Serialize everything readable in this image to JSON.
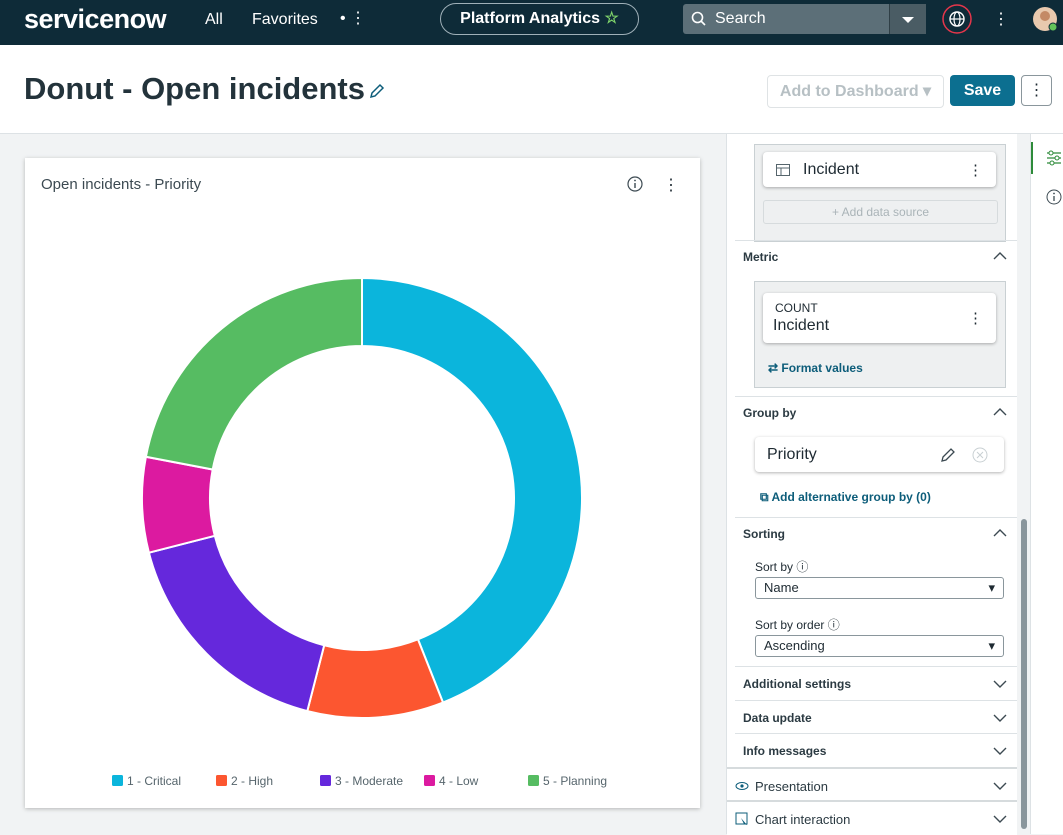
{
  "navbar": {
    "logo": "servicenow",
    "links": [
      "All",
      "Favorites"
    ],
    "app": "Platform Analytics",
    "search": "Search"
  },
  "header": {
    "title": "Donut - Open incidents",
    "add_button": "Add to Dashboard",
    "save_button": "Save"
  },
  "chart_data": {
    "type": "pie",
    "donut": true,
    "title": "Open incidents - Priority",
    "categories": [
      "1 - Critical",
      "2 - High",
      "3 - Moderate",
      "4 - Low",
      "5 - Planning"
    ],
    "values": [
      44,
      10,
      17,
      7,
      22
    ],
    "colors": [
      "#0bb5dc",
      "#fc5630",
      "#6528dc",
      "#dc1aa0",
      "#56bc62"
    ],
    "legend": "bottom"
  },
  "panel": {
    "data_source": "Incident",
    "add_data_source": "Add data source",
    "metric": {
      "title": "Metric",
      "aggregate": "COUNT",
      "table": "Incident",
      "format": "Format values"
    },
    "group_by": {
      "title": "Group by",
      "field": "Priority",
      "add": "Add alternative group by (0)"
    },
    "sorting": {
      "title": "Sorting",
      "sort_by_label": "Sort by",
      "sort_by": "Name",
      "order_label": "Sort by order",
      "order": "Ascending"
    },
    "sections": [
      "Additional settings",
      "Data update",
      "Info messages",
      "Presentation",
      "Chart interaction"
    ]
  }
}
